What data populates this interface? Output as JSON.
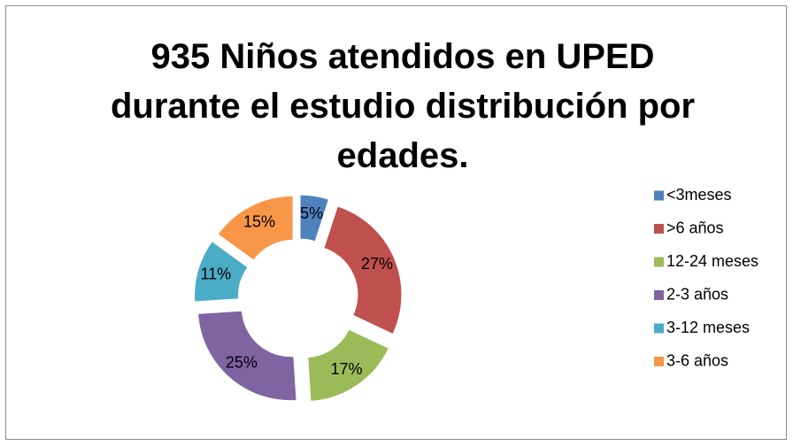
{
  "chart_data": {
    "type": "donut",
    "title": "935 Niños atendidos en UPED durante el estudio distribución por edades.",
    "categories": [
      "<3meses",
      ">6 años",
      "12-24 meses",
      "2-3 años",
      "3-12 meses",
      "3-6 años"
    ],
    "values": [
      5,
      27,
      17,
      25,
      11,
      15
    ],
    "value_labels": [
      "5%",
      "27%",
      "17%",
      "25%",
      "11%",
      "15%"
    ],
    "colors": [
      "#4f81bd",
      "#c0504d",
      "#9bbb59",
      "#8064a2",
      "#4bacc6",
      "#f79646"
    ],
    "legend": "right"
  }
}
